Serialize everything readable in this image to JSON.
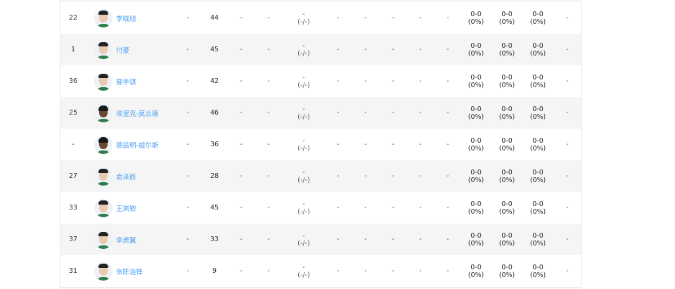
{
  "rows": [
    {
      "number": "22",
      "name": "李晓旭",
      "skin": "light",
      "c1": "-",
      "c2": "44",
      "c3": "-",
      "c4": "-",
      "c5a": "-",
      "c5b": "(-/-)",
      "c6": "-",
      "c7": "-",
      "c8": "-",
      "c9": "-",
      "c10": "-",
      "p1a": "0-0",
      "p1b": "(0%)",
      "p2a": "0-0",
      "p2b": "(0%)",
      "p3a": "0-0",
      "p3b": "(0%)",
      "c11": "-"
    },
    {
      "number": "1",
      "name": "付豪",
      "skin": "light",
      "c1": "-",
      "c2": "45",
      "c3": "-",
      "c4": "-",
      "c5a": "-",
      "c5b": "(-/-)",
      "c6": "-",
      "c7": "-",
      "c8": "-",
      "c9": "-",
      "c10": "-",
      "p1a": "0-0",
      "p1b": "(0%)",
      "p2a": "0-0",
      "p2b": "(0%)",
      "p3a": "0-0",
      "p3b": "(0%)",
      "c11": "-"
    },
    {
      "number": "36",
      "name": "鄢手骐",
      "skin": "light",
      "c1": "-",
      "c2": "42",
      "c3": "-",
      "c4": "-",
      "c5a": "-",
      "c5b": "(-/-)",
      "c6": "-",
      "c7": "-",
      "c8": "-",
      "c9": "-",
      "c10": "-",
      "p1a": "0-0",
      "p1b": "(0%)",
      "p2a": "0-0",
      "p2b": "(0%)",
      "p3a": "0-0",
      "p3b": "(0%)",
      "c11": "-"
    },
    {
      "number": "25",
      "name": "埃里克-莫兰德",
      "skin": "dark",
      "c1": "-",
      "c2": "46",
      "c3": "-",
      "c4": "-",
      "c5a": "-",
      "c5b": "(-/-)",
      "c6": "-",
      "c7": "-",
      "c8": "-",
      "c9": "-",
      "c10": "-",
      "p1a": "0-0",
      "p1b": "(0%)",
      "p2a": "0-0",
      "p2b": "(0%)",
      "p3a": "0-0",
      "p3b": "(0%)",
      "c11": "-"
    },
    {
      "number": "-",
      "name": "德兹明-威尔斯",
      "skin": "dark",
      "c1": "-",
      "c2": "36",
      "c3": "-",
      "c4": "-",
      "c5a": "-",
      "c5b": "(-/-)",
      "c6": "-",
      "c7": "-",
      "c8": "-",
      "c9": "-",
      "c10": "-",
      "p1a": "0-0",
      "p1b": "(0%)",
      "p2a": "0-0",
      "p2b": "(0%)",
      "p3a": "0-0",
      "p3b": "(0%)",
      "c11": "-"
    },
    {
      "number": "27",
      "name": "俞泽辰",
      "skin": "light",
      "c1": "-",
      "c2": "28",
      "c3": "-",
      "c4": "-",
      "c5a": "-",
      "c5b": "(-/-)",
      "c6": "-",
      "c7": "-",
      "c8": "-",
      "c9": "-",
      "c10": "-",
      "p1a": "0-0",
      "p1b": "(0%)",
      "p2a": "0-0",
      "p2b": "(0%)",
      "p3a": "0-0",
      "p3b": "(0%)",
      "c11": "-"
    },
    {
      "number": "33",
      "name": "王岚嵚",
      "skin": "light",
      "c1": "-",
      "c2": "45",
      "c3": "-",
      "c4": "-",
      "c5a": "-",
      "c5b": "(-/-)",
      "c6": "-",
      "c7": "-",
      "c8": "-",
      "c9": "-",
      "c10": "-",
      "p1a": "0-0",
      "p1b": "(0%)",
      "p2a": "0-0",
      "p2b": "(0%)",
      "p3a": "0-0",
      "p3b": "(0%)",
      "c11": "-"
    },
    {
      "number": "37",
      "name": "李虎翼",
      "skin": "light",
      "c1": "-",
      "c2": "33",
      "c3": "-",
      "c4": "-",
      "c5a": "-",
      "c5b": "(-/-)",
      "c6": "-",
      "c7": "-",
      "c8": "-",
      "c9": "-",
      "c10": "-",
      "p1a": "0-0",
      "p1b": "(0%)",
      "p2a": "0-0",
      "p2b": "(0%)",
      "p3a": "0-0",
      "p3b": "(0%)",
      "c11": "-"
    },
    {
      "number": "31",
      "name": "张陈治锋",
      "skin": "light",
      "c1": "-",
      "c2": "9",
      "c3": "-",
      "c4": "-",
      "c5a": "-",
      "c5b": "(-/-)",
      "c6": "-",
      "c7": "-",
      "c8": "-",
      "c9": "-",
      "c10": "-",
      "p1a": "0-0",
      "p1b": "(0%)",
      "p2a": "0-0",
      "p2b": "(0%)",
      "p3a": "0-0",
      "p3b": "(0%)",
      "c11": "-"
    }
  ]
}
